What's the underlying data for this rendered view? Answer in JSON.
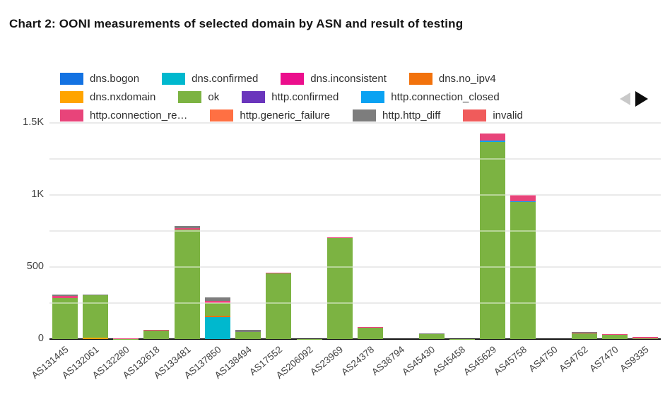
{
  "title": "Chart 2: OONI measurements of selected domain by ASN and result of testing",
  "legend": {
    "items_per_row": 4,
    "prev_arrow_color": "#c9c9c9",
    "next_arrow_color": "#0d0d0d"
  },
  "chart_data": {
    "type": "bar",
    "stacked": true,
    "title": "Chart 2: OONI measurements of selected domain by ASN and result of testing",
    "xlabel": "",
    "ylabel": "",
    "ylim": [
      0,
      1500
    ],
    "grid": true,
    "legend_position": "top",
    "background": "#ffffff",
    "yticks": [
      {
        "value": 0,
        "label": "0"
      },
      {
        "value": 500,
        "label": "500"
      },
      {
        "value": 1000,
        "label": "1K"
      },
      {
        "value": 1500,
        "label": "1.5K"
      }
    ],
    "gridline_values": [
      250,
      500,
      750,
      1000,
      1250,
      1500
    ],
    "categories": [
      "AS131445",
      "AS132061",
      "AS132280",
      "AS132618",
      "AS133481",
      "AS137850",
      "AS138494",
      "AS17552",
      "AS206092",
      "AS23969",
      "AS24378",
      "AS38794",
      "AS45430",
      "AS45458",
      "AS45629",
      "AS45758",
      "AS4750",
      "AS4762",
      "AS7470",
      "AS9335"
    ],
    "series": [
      {
        "name": "dns.bogon",
        "color": "#1372E2",
        "values": [
          0,
          0,
          0,
          0,
          0,
          0,
          0,
          0,
          0,
          0,
          0,
          0,
          0,
          0,
          0,
          0,
          0,
          0,
          0,
          0
        ]
      },
      {
        "name": "dns.confirmed",
        "color": "#00B8CE",
        "values": [
          0,
          0,
          0,
          0,
          0,
          150,
          0,
          0,
          0,
          0,
          0,
          0,
          0,
          0,
          0,
          0,
          0,
          0,
          0,
          0
        ]
      },
      {
        "name": "dns.inconsistent",
        "color": "#EB0E8C",
        "values": [
          0,
          0,
          0,
          0,
          0,
          0,
          0,
          0,
          0,
          0,
          0,
          0,
          0,
          0,
          0,
          0,
          0,
          0,
          0,
          0
        ]
      },
      {
        "name": "dns.no_ipv4",
        "color": "#F2720C",
        "values": [
          0,
          0,
          0,
          0,
          0,
          12,
          0,
          0,
          0,
          0,
          0,
          0,
          0,
          0,
          0,
          0,
          0,
          0,
          0,
          0
        ]
      },
      {
        "name": "dns.nxdomain",
        "color": "#FFA400",
        "values": [
          0,
          8,
          0,
          0,
          0,
          0,
          0,
          0,
          0,
          0,
          0,
          0,
          0,
          0,
          0,
          0,
          0,
          0,
          0,
          0
        ]
      },
      {
        "name": "ok",
        "color": "#7CB342",
        "values": [
          285,
          295,
          2,
          60,
          760,
          90,
          50,
          455,
          2,
          700,
          78,
          0,
          34,
          2,
          1370,
          950,
          0,
          38,
          28,
          5
        ]
      },
      {
        "name": "http.confirmed",
        "color": "#6A35BC",
        "values": [
          0,
          0,
          0,
          0,
          0,
          0,
          0,
          0,
          0,
          0,
          0,
          0,
          0,
          0,
          0,
          0,
          0,
          0,
          0,
          0
        ]
      },
      {
        "name": "http.connection_closed",
        "color": "#0AA2F2",
        "values": [
          0,
          0,
          0,
          0,
          0,
          0,
          0,
          0,
          0,
          0,
          0,
          0,
          0,
          0,
          8,
          6,
          0,
          0,
          0,
          0
        ]
      },
      {
        "name": "http.connection_re…",
        "color": "#E8447A",
        "values": [
          14,
          0,
          2,
          4,
          10,
          14,
          0,
          5,
          0,
          5,
          4,
          0,
          0,
          0,
          48,
          45,
          0,
          4,
          8,
          8
        ]
      },
      {
        "name": "http.generic_failure",
        "color": "#FF7043",
        "values": [
          0,
          0,
          0,
          0,
          0,
          0,
          0,
          0,
          0,
          0,
          0,
          0,
          0,
          0,
          0,
          0,
          0,
          0,
          0,
          0
        ]
      },
      {
        "name": "http.http_diff",
        "color": "#7D7D7D",
        "values": [
          8,
          8,
          0,
          0,
          14,
          22,
          12,
          0,
          0,
          0,
          0,
          0,
          4,
          0,
          0,
          0,
          0,
          5,
          0,
          0
        ]
      },
      {
        "name": "invalid",
        "color": "#F05B5B",
        "values": [
          0,
          0,
          0,
          0,
          0,
          0,
          0,
          0,
          0,
          0,
          0,
          0,
          0,
          0,
          0,
          0,
          0,
          0,
          0,
          0
        ]
      }
    ]
  }
}
